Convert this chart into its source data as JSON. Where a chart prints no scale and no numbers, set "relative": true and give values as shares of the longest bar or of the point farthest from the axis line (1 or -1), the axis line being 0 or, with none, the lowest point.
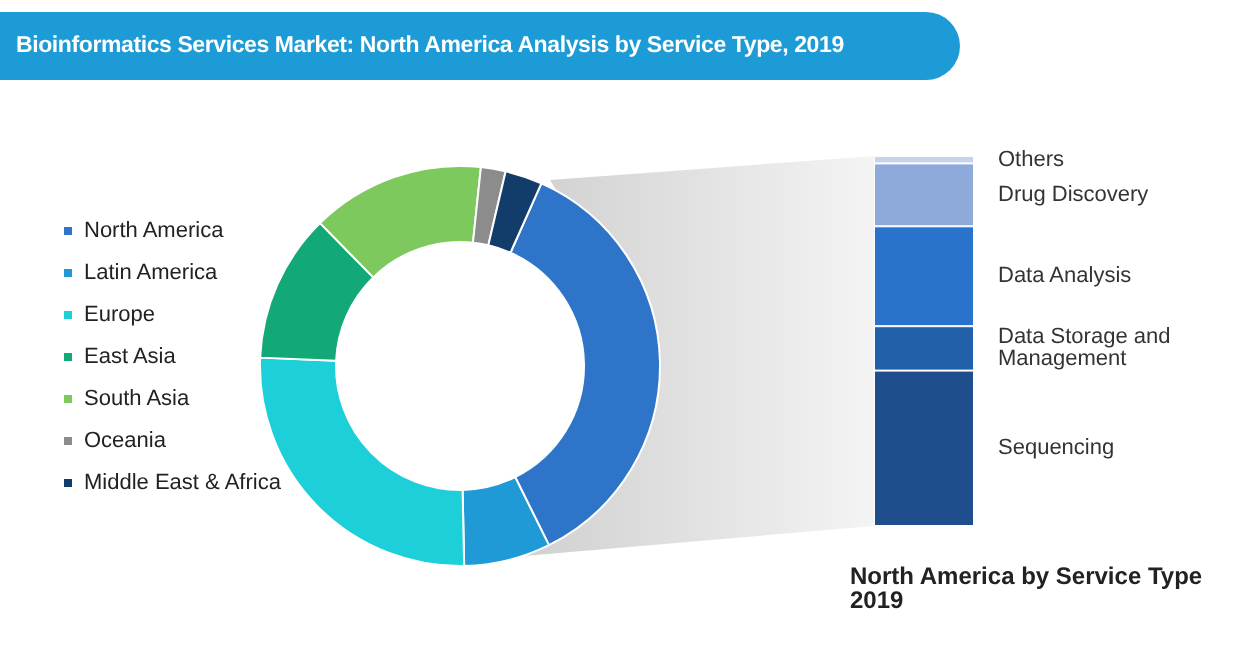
{
  "chart_data": [
    {
      "type": "donut",
      "title": "Bioinformatics Services Market: North America Analysis by Service Type, 2019",
      "categories": [
        "North America",
        "Latin America",
        "Europe",
        "East Asia",
        "South Asia",
        "Oceania",
        "Middle East & Africa"
      ],
      "values": [
        36,
        7,
        26,
        12,
        14,
        2,
        3
      ],
      "colors": [
        "#2e75c9",
        "#1f9ad6",
        "#1ccfd9",
        "#12a877",
        "#7dc95e",
        "#8c8c8c",
        "#123d6b"
      ],
      "legend": "left"
    },
    {
      "type": "bar",
      "title": "North America by Service Type 2019",
      "categories": [
        null
      ],
      "stacked": true,
      "relative": true,
      "series": [
        {
          "name": "Sequencing",
          "color": "#1f4e8c",
          "values": [
            0.42
          ]
        },
        {
          "name": "Data Storage and Management",
          "color": "#2160a8",
          "values": [
            0.12
          ]
        },
        {
          "name": "Data Analysis",
          "color": "#2a73cc",
          "values": [
            0.27
          ]
        },
        {
          "name": "Drug Discovery",
          "color": "#8eaadb",
          "values": [
            0.17
          ]
        },
        {
          "name": "Others",
          "color": "#c5d3ec",
          "values": [
            0.02
          ]
        }
      ]
    }
  ]
}
